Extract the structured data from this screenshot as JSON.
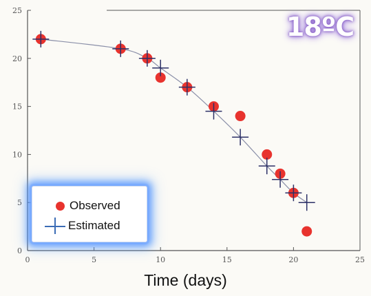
{
  "badge": {
    "text": "18ºC"
  },
  "legend": {
    "observed_label": "Observed",
    "estimated_label": "Estimated"
  },
  "colors": {
    "observed": "#e8332e",
    "estimated": "#2b2f66",
    "curve": "#8a8fa8",
    "axis": "#555555",
    "legend_glow": "#4a90ff",
    "badge_glow": "#8a62c8"
  },
  "chart_data": {
    "type": "scatter",
    "title": "",
    "xlabel": "Time (days)",
    "ylabel": "",
    "xlim": [
      0,
      25
    ],
    "ylim": [
      0,
      25
    ],
    "x_ticks": [
      0,
      5,
      10,
      15,
      20,
      25
    ],
    "y_ticks": [
      0,
      5,
      10,
      15,
      20,
      25
    ],
    "grid": false,
    "legend_position": "bottom-left",
    "series": [
      {
        "name": "Observed",
        "marker": "circle",
        "points": [
          {
            "x": 1,
            "y": 22.0
          },
          {
            "x": 7,
            "y": 21.0
          },
          {
            "x": 9,
            "y": 20.0
          },
          {
            "x": 10,
            "y": 18.0
          },
          {
            "x": 12,
            "y": 17.0
          },
          {
            "x": 14,
            "y": 15.0
          },
          {
            "x": 16,
            "y": 14.0
          },
          {
            "x": 18,
            "y": 10.0
          },
          {
            "x": 19,
            "y": 8.0
          },
          {
            "x": 20,
            "y": 6.0
          },
          {
            "x": 21,
            "y": 2.0
          }
        ]
      },
      {
        "name": "Estimated",
        "marker": "cross",
        "points": [
          {
            "x": 1,
            "y": 22.0
          },
          {
            "x": 7,
            "y": 21.0
          },
          {
            "x": 9,
            "y": 20.0
          },
          {
            "x": 10,
            "y": 19.0
          },
          {
            "x": 12,
            "y": 17.0
          },
          {
            "x": 14,
            "y": 14.5
          },
          {
            "x": 16,
            "y": 11.8
          },
          {
            "x": 18,
            "y": 8.8
          },
          {
            "x": 19,
            "y": 7.4
          },
          {
            "x": 20,
            "y": 6.0
          },
          {
            "x": 21,
            "y": 5.0
          }
        ]
      }
    ]
  }
}
